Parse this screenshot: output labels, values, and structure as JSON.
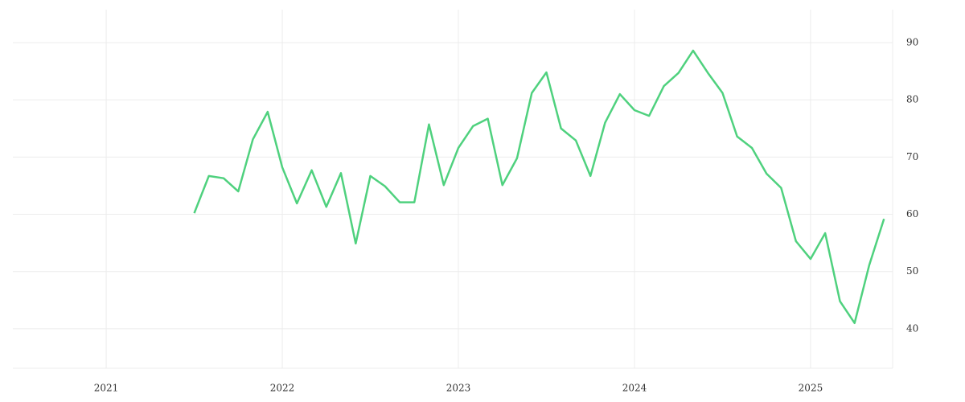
{
  "chart_data": {
    "type": "line",
    "x": [
      2021.5,
      2021.583,
      2021.667,
      2021.75,
      2021.833,
      2021.917,
      2022,
      2022.083,
      2022.167,
      2022.25,
      2022.333,
      2022.417,
      2022.5,
      2022.583,
      2022.667,
      2022.75,
      2022.833,
      2022.917,
      2023,
      2023.083,
      2023.167,
      2023.25,
      2023.333,
      2023.417,
      2023.5,
      2023.583,
      2023.667,
      2023.75,
      2023.833,
      2023.917,
      2024,
      2024.083,
      2024.167,
      2024.25,
      2024.333,
      2024.417,
      2024.5,
      2024.583,
      2024.667,
      2024.75,
      2024.833,
      2024.917,
      2025,
      2025.083,
      2025.167,
      2025.25,
      2025.333,
      2025.417
    ],
    "series": [
      {
        "color": "#4fd17e",
        "values": [
          60.2,
          66.7,
          66.3,
          64.0,
          73.1,
          77.9,
          68.2,
          61.9,
          67.7,
          61.3,
          67.2,
          54.9,
          66.7,
          64.9,
          62.1,
          62.1,
          75.7,
          65.1,
          71.6,
          75.4,
          76.7,
          65.1,
          69.8,
          81.2,
          84.8,
          75.0,
          72.9,
          66.7,
          76.0,
          81.0,
          78.2,
          77.2,
          82.4,
          84.7,
          88.6,
          84.7,
          81.2,
          73.6,
          71.6,
          67.1,
          64.6,
          55.3,
          52.2,
          56.7,
          44.8,
          41.0,
          51.1,
          59.2
        ]
      }
    ],
    "xlim": [
      2020.47,
      2025.466
    ],
    "xticks": [
      2021,
      2022,
      2023,
      2024,
      2025
    ],
    "ylim": [
      33.1,
      95.76
    ],
    "yticks": [
      40,
      50,
      60,
      70,
      80,
      90
    ],
    "grid": true
  }
}
